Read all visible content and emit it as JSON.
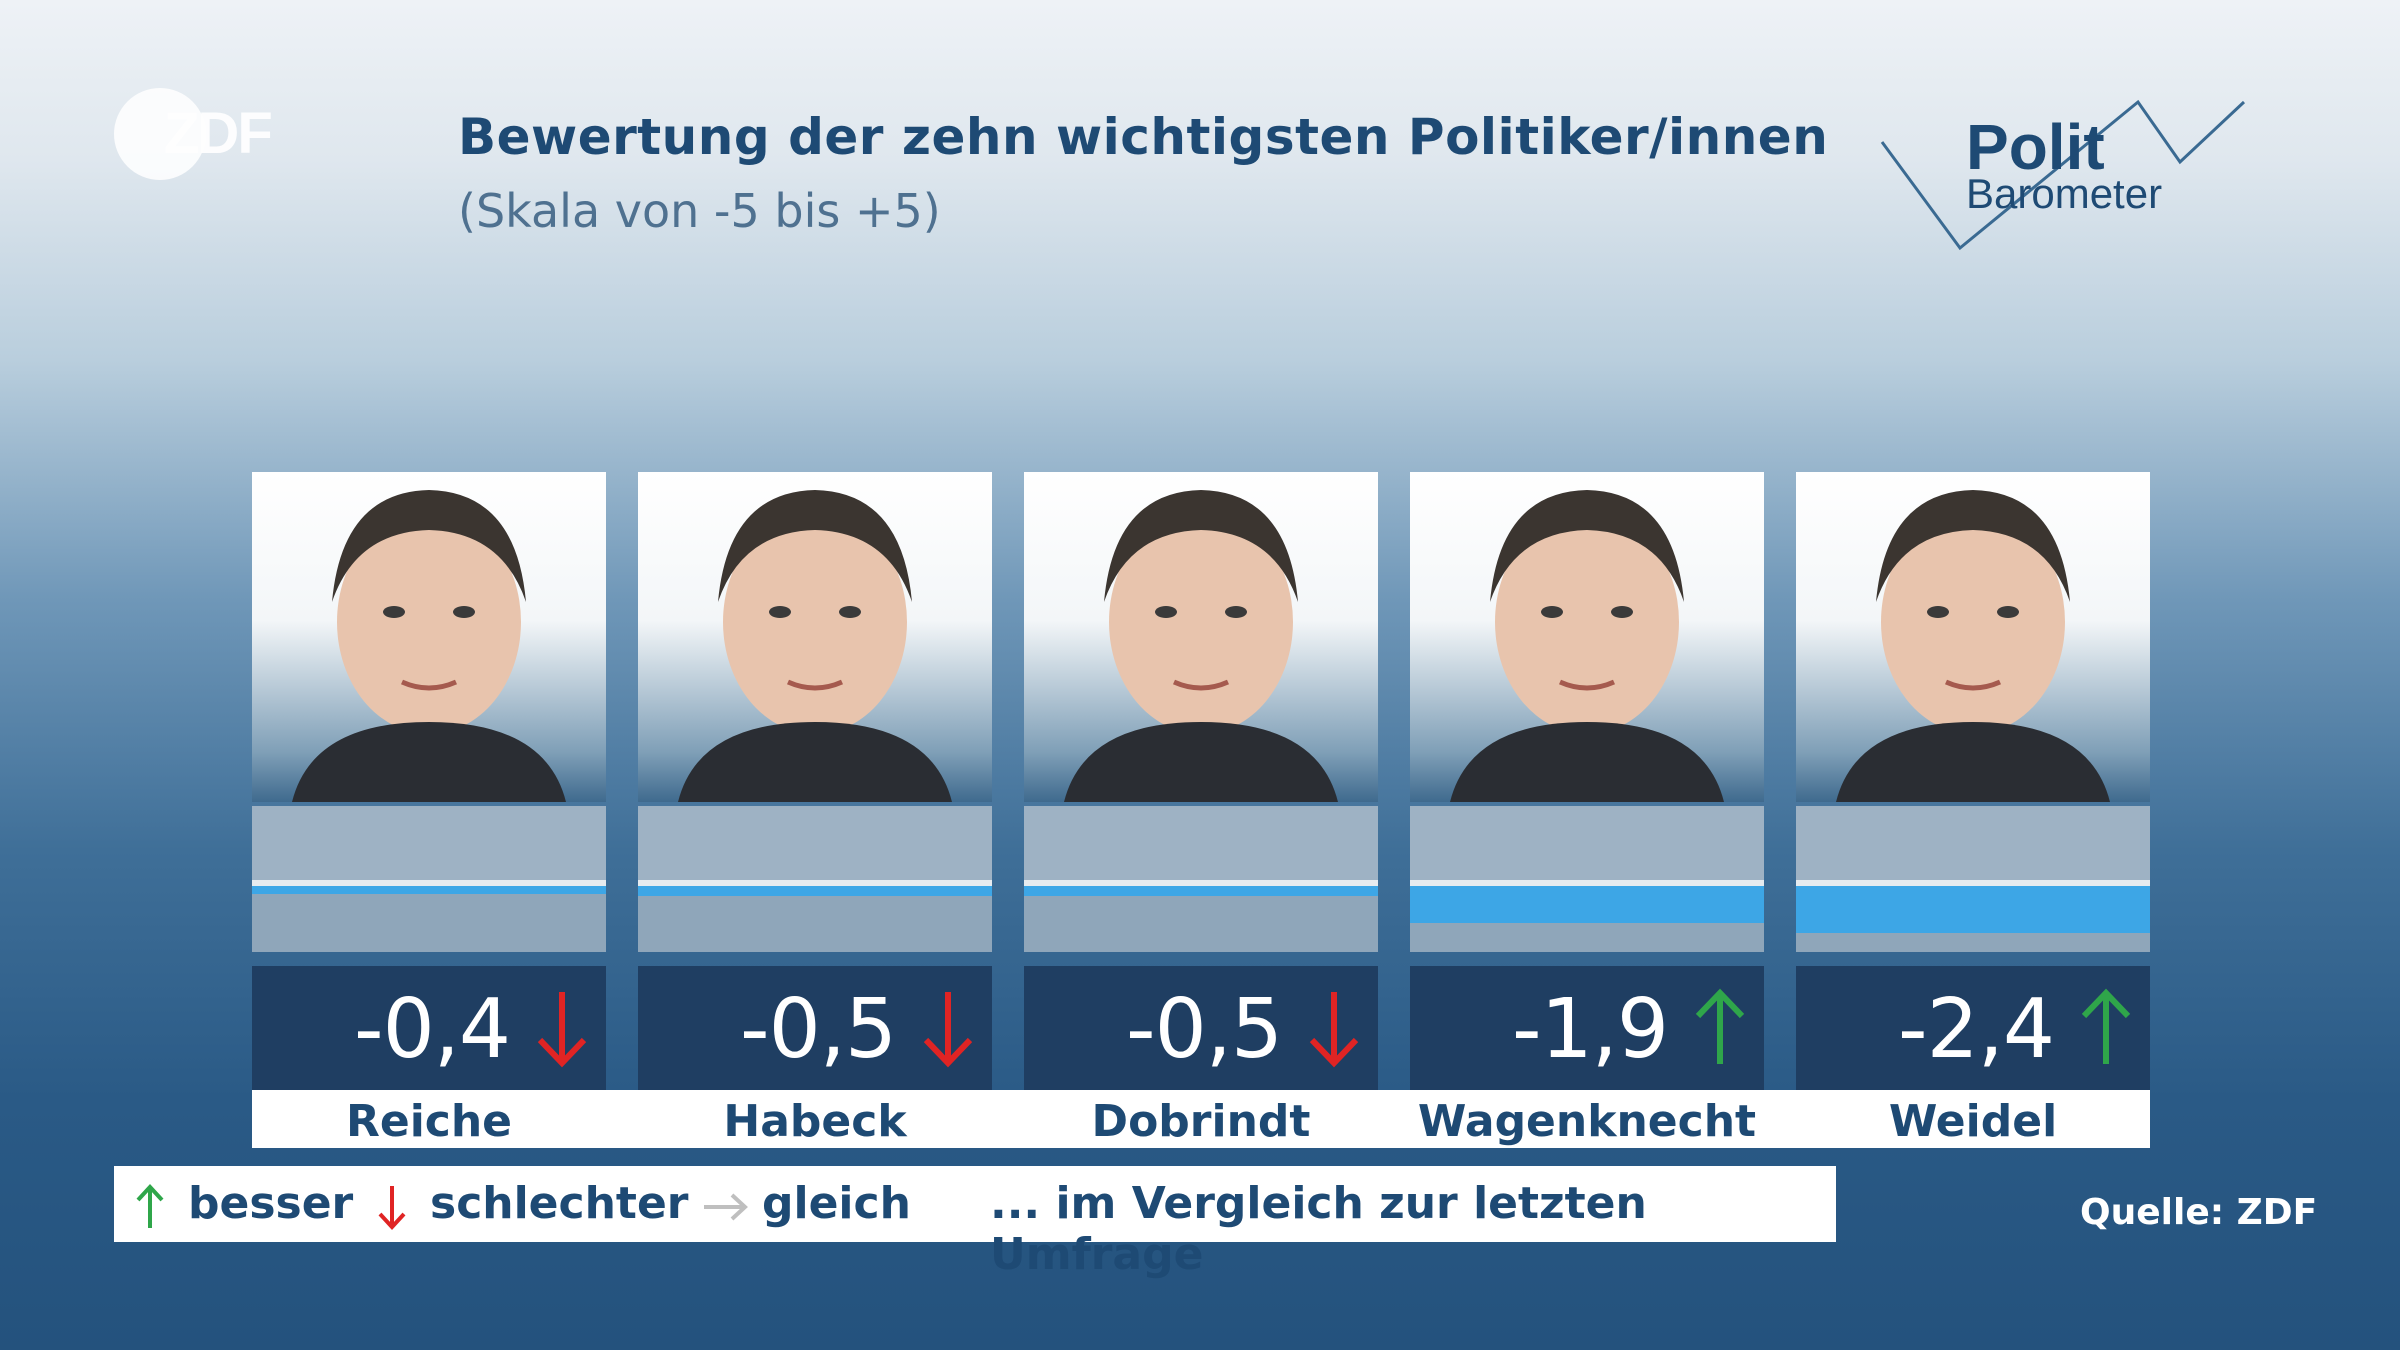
{
  "header": {
    "title": "Bewertung der zehn wichtigsten Politiker/innen",
    "subtitle": "(Skala von -5 bis +5)"
  },
  "brand": {
    "zdf": "ZDF",
    "polit_line1": "Polit",
    "polit_line2": "Barometer"
  },
  "colors": {
    "bar": "#3da6e6",
    "value_box": "#1f3e62",
    "up": "#2fa64a",
    "down": "#e02424",
    "same": "#bfbfbf",
    "text_dark": "#1e4a74"
  },
  "chart_data": {
    "type": "bar",
    "title": "Bewertung der zehn wichtigsten Politiker/innen",
    "subtitle": "(Skala von -5 bis +5)",
    "ylim": [
      -5,
      5
    ],
    "categories": [
      "Reiche",
      "Habeck",
      "Dobrindt",
      "Wagenknecht",
      "Weidel"
    ],
    "values": [
      -0.4,
      -0.5,
      -0.5,
      -1.9,
      -2.4
    ],
    "value_labels": [
      "-0,4",
      "-0,5",
      "-0,5",
      "-1,9",
      "-2,4"
    ],
    "trends": [
      "down",
      "down",
      "down",
      "up",
      "up"
    ]
  },
  "legend": {
    "better": "besser",
    "worse": "schlechter",
    "same": "gleich",
    "note": "... im Vergleich zur letzten Umfrage"
  },
  "source": "Quelle: ZDF"
}
